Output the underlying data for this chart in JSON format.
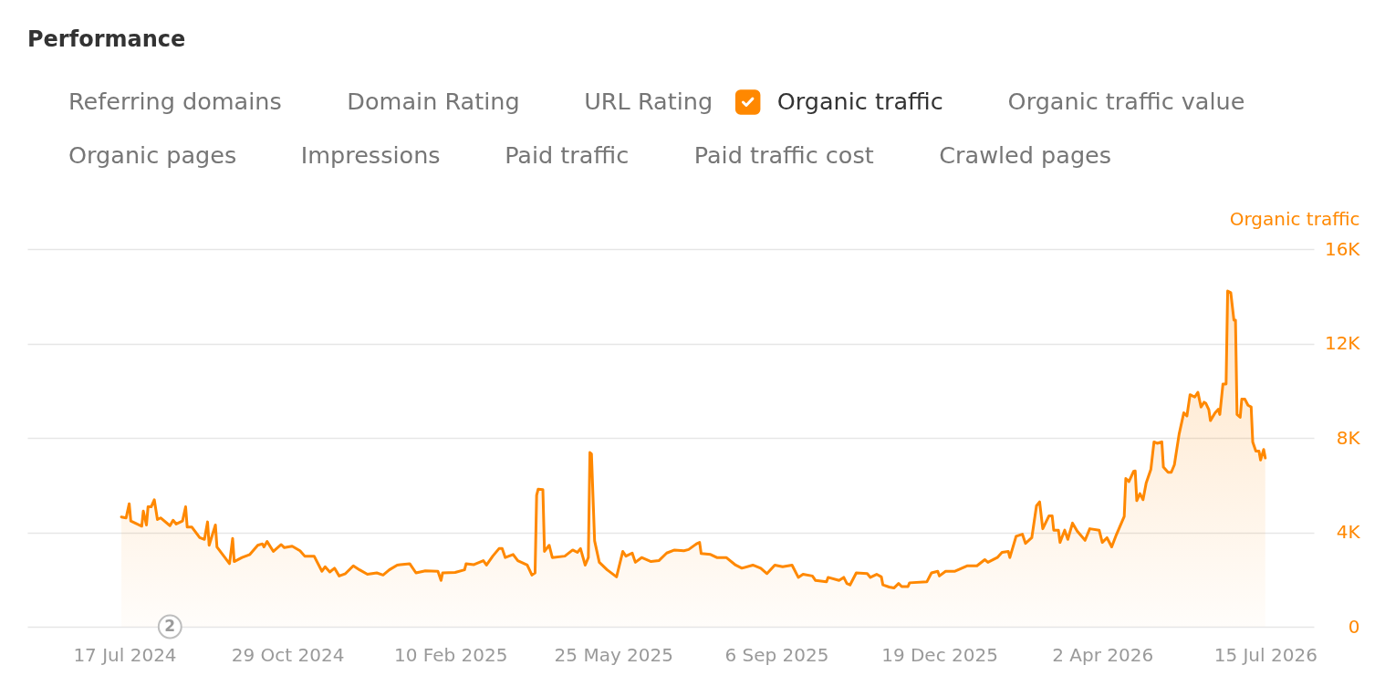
{
  "chart_data": {
    "type": "area",
    "title": "Performance",
    "ylabel": "Organic traffic",
    "x": [
      "2024-07-15",
      "2024-07-18",
      "2024-07-20",
      "2024-07-21",
      "2024-07-25",
      "2024-07-28",
      "2024-07-29",
      "2024-07-31",
      "2024-08-01",
      "2024-08-03",
      "2024-08-05",
      "2024-08-07",
      "2024-08-09",
      "2024-08-15",
      "2024-08-17",
      "2024-08-19",
      "2024-08-23",
      "2024-08-25",
      "2024-08-26",
      "2024-08-29",
      "2024-09-03",
      "2024-09-06",
      "2024-09-08",
      "2024-09-09",
      "2024-09-13",
      "2024-09-14",
      "2024-09-22",
      "2024-09-24",
      "2024-09-25",
      "2024-09-30",
      "2024-10-05",
      "2024-10-10",
      "2024-10-13",
      "2024-10-14",
      "2024-10-16",
      "2024-10-20",
      "2024-10-25",
      "2024-10-27",
      "2024-11-01",
      "2024-11-06",
      "2024-11-09",
      "2024-11-15",
      "2024-11-20",
      "2024-11-22",
      "2024-11-25",
      "2024-11-28",
      "2024-12-01",
      "2024-12-05",
      "2024-12-10",
      "2024-12-14",
      "2024-12-19",
      "2024-12-25",
      "2024-12-29",
      "2025-01-02",
      "2025-01-07",
      "2025-01-09",
      "2025-01-15",
      "2025-01-19",
      "2025-01-25",
      "2025-02-02",
      "2025-02-04",
      "2025-02-05",
      "2025-02-13",
      "2025-02-19",
      "2025-02-20",
      "2025-02-25",
      "2025-03-03",
      "2025-03-05",
      "2025-03-09",
      "2025-03-13",
      "2025-03-15",
      "2025-03-17",
      "2025-03-22",
      "2025-03-25",
      "2025-03-31",
      "2025-04-03",
      "2025-04-05",
      "2025-04-06",
      "2025-04-07",
      "2025-04-10",
      "2025-04-11",
      "2025-04-14",
      "2025-04-16",
      "2025-04-24",
      "2025-04-29",
      "2025-05-02",
      "2025-05-04",
      "2025-05-07",
      "2025-05-09",
      "2025-05-10",
      "2025-05-11",
      "2025-05-13",
      "2025-05-16",
      "2025-05-21",
      "2025-05-27",
      "2025-05-31",
      "2025-06-02",
      "2025-06-06",
      "2025-06-08",
      "2025-06-12",
      "2025-06-18",
      "2025-06-23",
      "2025-06-28",
      "2025-07-03",
      "2025-07-09",
      "2025-07-12",
      "2025-07-17",
      "2025-07-19",
      "2025-07-20",
      "2025-07-26",
      "2025-07-30",
      "2025-08-05",
      "2025-08-11",
      "2025-08-15",
      "2025-08-22",
      "2025-08-27",
      "2025-08-31",
      "2025-09-05",
      "2025-09-10",
      "2025-09-16",
      "2025-09-20",
      "2025-09-23",
      "2025-09-29",
      "2025-10-01",
      "2025-10-08",
      "2025-10-09",
      "2025-10-16",
      "2025-10-19",
      "2025-10-21",
      "2025-10-23",
      "2025-10-27",
      "2025-11-03",
      "2025-11-05",
      "2025-11-09",
      "2025-11-12",
      "2025-11-13",
      "2025-11-17",
      "2025-11-20",
      "2025-11-23",
      "2025-11-25",
      "2025-11-29",
      "2025-11-30",
      "2025-12-11",
      "2025-12-14",
      "2025-12-18",
      "2025-12-19",
      "2025-12-23",
      "2025-12-29",
      "2026-01-06",
      "2026-01-12",
      "2026-01-17",
      "2026-01-19",
      "2026-01-25",
      "2026-01-28",
      "2026-02-01",
      "2026-02-02",
      "2026-02-06",
      "2026-02-10",
      "2026-02-12",
      "2026-02-16",
      "2026-02-19",
      "2026-02-21",
      "2026-02-23",
      "2026-02-27",
      "2026-03-01",
      "2026-03-02",
      "2026-03-05",
      "2026-03-06",
      "2026-03-09",
      "2026-03-11",
      "2026-03-14",
      "2026-03-17",
      "2026-03-22",
      "2026-03-25",
      "2026-03-31",
      "2026-04-02",
      "2026-04-05",
      "2026-04-08",
      "2026-04-11",
      "2026-04-16",
      "2026-04-17",
      "2026-04-19",
      "2026-04-22",
      "2026-04-23",
      "2026-04-24",
      "2026-04-26",
      "2026-04-28",
      "2026-04-30",
      "2026-05-03",
      "2026-05-05",
      "2026-05-07",
      "2026-05-10",
      "2026-05-11",
      "2026-05-14",
      "2026-05-16",
      "2026-05-18",
      "2026-05-21",
      "2026-05-24",
      "2026-05-26",
      "2026-05-28",
      "2026-05-31",
      "2026-06-02",
      "2026-06-04",
      "2026-06-06",
      "2026-06-07",
      "2026-06-09",
      "2026-06-10",
      "2026-06-13",
      "2026-06-15",
      "2026-06-16",
      "2026-06-18",
      "2026-06-20",
      "2026-06-21",
      "2026-06-23",
      "2026-06-25",
      "2026-06-26",
      "2026-06-27",
      "2026-06-29",
      "2026-06-30",
      "2026-07-02",
      "2026-07-04",
      "2026-07-06",
      "2026-07-07",
      "2026-07-09",
      "2026-07-11",
      "2026-07-12",
      "2026-07-14",
      "2026-07-15"
    ],
    "series": [
      {
        "name": "Organic traffic",
        "color": "#ff8800",
        "values": [
          4650,
          4610,
          5210,
          4480,
          4350,
          4260,
          4900,
          4310,
          5080,
          5080,
          5380,
          4540,
          4610,
          4280,
          4510,
          4350,
          4480,
          5080,
          4220,
          4220,
          3770,
          3700,
          4440,
          3450,
          4310,
          3380,
          2670,
          3740,
          2760,
          2930,
          3060,
          3450,
          3510,
          3380,
          3610,
          3190,
          3480,
          3350,
          3410,
          3220,
          2990,
          2990,
          2350,
          2540,
          2320,
          2480,
          2150,
          2250,
          2580,
          2410,
          2220,
          2280,
          2190,
          2410,
          2610,
          2630,
          2670,
          2280,
          2370,
          2350,
          1960,
          2280,
          2300,
          2410,
          2670,
          2630,
          2800,
          2610,
          2990,
          3310,
          3310,
          2930,
          3060,
          2800,
          2610,
          2190,
          2280,
          5570,
          5830,
          5810,
          3190,
          3450,
          2930,
          2990,
          3250,
          3150,
          3310,
          2610,
          2930,
          7380,
          7320,
          3640,
          2730,
          2410,
          2110,
          3190,
          2990,
          3120,
          2730,
          2930,
          2760,
          2800,
          3120,
          3250,
          3220,
          3270,
          3510,
          3570,
          3100,
          3060,
          2930,
          2930,
          2610,
          2480,
          2610,
          2480,
          2250,
          2610,
          2540,
          2610,
          2090,
          2220,
          2150,
          1960,
          1900,
          2090,
          1960,
          2090,
          1830,
          1770,
          2280,
          2250,
          2090,
          2220,
          2110,
          1770,
          1680,
          1640,
          1830,
          1700,
          1700,
          1860,
          1900,
          2280,
          2350,
          2150,
          2350,
          2350,
          2580,
          2580,
          2840,
          2730,
          2930,
          3150,
          3190,
          2930,
          3830,
          3920,
          3530,
          3770,
          5120,
          5290,
          4150,
          4700,
          4700,
          4090,
          4090,
          3570,
          4090,
          3700,
          4390,
          4050,
          3660,
          4150,
          4090,
          3570,
          3770,
          3380,
          3900,
          4670,
          6280,
          6150,
          6580,
          6600,
          5340,
          5640,
          5380,
          6090,
          6670,
          7830,
          7770,
          7830,
          6760,
          6540,
          6540,
          6860,
          8150,
          9060,
          8930,
          9830,
          9730,
          9930,
          9310,
          9510,
          9470,
          9190,
          8730,
          9060,
          9210,
          8990,
          10280,
          10280,
          14220,
          14150,
          12990,
          12990,
          8990,
          8870,
          9640,
          9640,
          9380,
          9310,
          7830,
          7440,
          7440,
          7060,
          7510,
          7150
        ]
      }
    ],
    "xlim": [
      "2024-05-16",
      "2026-08-15"
    ],
    "xticks": [
      {
        "value": "2024-07-17",
        "label": "17 Jul 2024"
      },
      {
        "value": "2024-10-29",
        "label": "29 Oct 2024"
      },
      {
        "value": "2025-02-10",
        "label": "10 Feb 2025"
      },
      {
        "value": "2025-05-25",
        "label": "25 May 2025"
      },
      {
        "value": "2025-09-06",
        "label": "6 Sep 2025"
      },
      {
        "value": "2025-12-19",
        "label": "19 Dec 2025"
      },
      {
        "value": "2026-04-02",
        "label": "2 Apr 2026"
      },
      {
        "value": "2026-07-15",
        "label": "15 Jul 2026"
      }
    ],
    "ylim": [
      0,
      16000
    ],
    "yticks": [
      0,
      {
        "value": 4000,
        "label": "4K"
      },
      {
        "value": 8000,
        "label": "8K"
      },
      {
        "value": 12000,
        "label": "12K"
      },
      {
        "value": 16000,
        "label": "16K"
      }
    ],
    "grid": "y",
    "legend": "top",
    "annotations": [
      "Referring domains",
      "Domain Rating",
      "URL Rating",
      "Organic traffic value",
      "Organic pages",
      "Impressions",
      "Paid traffic",
      "Paid traffic cost",
      "Crawled pages",
      {
        "text": "2",
        "x": "2024-08-15"
      }
    ]
  }
}
